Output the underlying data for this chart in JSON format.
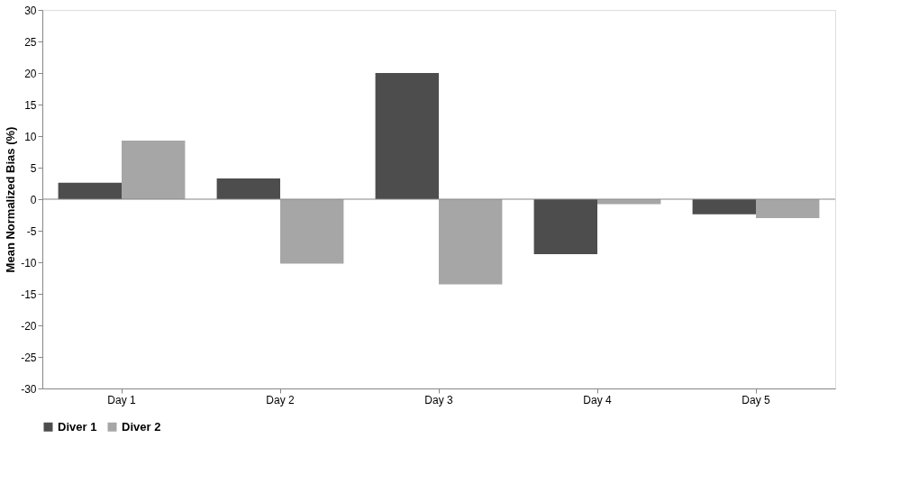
{
  "chart_data": {
    "type": "bar",
    "ylabel": "Mean Normalized Bias (%)",
    "categories": [
      "Day 1",
      "Day 2",
      "Day 3",
      "Day 4",
      "Day 5"
    ],
    "series": [
      {
        "name": "Diver 1",
        "color": "#4d4d4d",
        "values": [
          2.6,
          3.3,
          20,
          -8.7,
          -2.4
        ]
      },
      {
        "name": "Diver 2",
        "color": "#a6a6a6",
        "values": [
          9.3,
          -10.2,
          -13.5,
          -0.8,
          -3.0
        ]
      }
    ],
    "ylim": [
      -30,
      30
    ],
    "yticks": [
      -30,
      -25,
      -20,
      -15,
      -10,
      -5,
      0,
      5,
      10,
      15,
      20,
      25,
      30
    ],
    "ref_lines": [
      {
        "axis": "y",
        "value": 0,
        "color": "#868686"
      }
    ],
    "grid": false,
    "legend": "bottom"
  }
}
